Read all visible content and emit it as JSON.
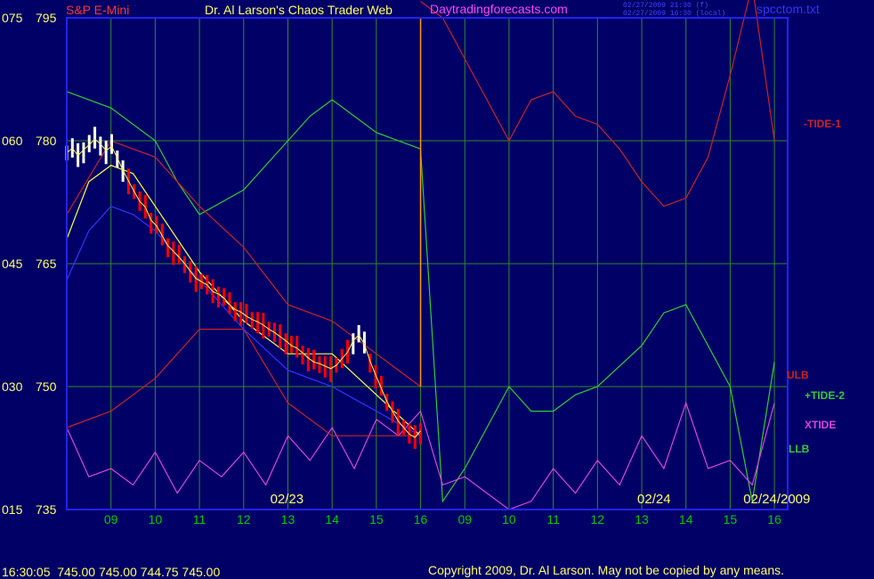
{
  "header": {
    "symbol": "S&P E-Mini",
    "title": "Dr. Al Larson's Chaos Trader Web",
    "site": "Daytradingforecasts.com",
    "stamp_line1": "02/27/2009 21:30 (f)",
    "stamp_line2": "02/27/2009 16:30 (local)",
    "file": "spcctom.txt"
  },
  "footer": {
    "quote_line": "16:30:05  745.00 745.00 744.75 745.00",
    "copyright": "Copyright 2009, Dr. Al Larson. May not be copied by any means."
  },
  "colors": {
    "background": "#000066",
    "grid": "#2e8b2e",
    "plot_border": "#2222ff",
    "tick_text": "#00cc00",
    "price_text": "#ffff66",
    "title_text": "#ffff66",
    "symbol_text": "#ff3333",
    "site_text": "#ff44ff",
    "file_text": "#3333ff",
    "price_white": "#ffffff",
    "price_red": "#ff0000",
    "tide1": "#cc2222",
    "tide2": "#33cc33",
    "xtide": "#dd44dd",
    "ulb": "#cc2222",
    "llb": "#cc2222",
    "ma_blue": "#3333ff",
    "ma_yellow": "#ffff44",
    "cursor_orange": "#ff9900"
  },
  "chart_data": {
    "type": "line",
    "title": "S&P E-Mini",
    "xlabel": "",
    "ylabel": "",
    "ylim": [
      735,
      795
    ],
    "grid": true,
    "price_axis_labels": [
      "795",
      "780",
      "765",
      "750",
      "735"
    ],
    "left_axis_labels": [
      "075",
      "060",
      "045",
      "030",
      "015"
    ],
    "hour_ticks": [
      "09",
      "10",
      "11",
      "12",
      "13",
      "14",
      "15",
      "16",
      "09",
      "10",
      "11",
      "12",
      "13",
      "14",
      "15",
      "16"
    ],
    "date_labels": [
      "02/23",
      "02/24",
      "02/24/2009"
    ],
    "legend": [
      "-TIDE-1",
      "ULB",
      "+TIDE-2",
      "XTIDE",
      "LLB"
    ],
    "legend_placement": "right",
    "bars": {
      "x_start": 8.0,
      "x_end": 16.0,
      "values": [
        778.5,
        779.1,
        778.2,
        778.9,
        779.5,
        780.2,
        779.6,
        778.8,
        779.3,
        777.9,
        776.4,
        775.1,
        773.8,
        772.6,
        771.9,
        770.3,
        769.6,
        768.4,
        767.2,
        766.5,
        765.8,
        765.0,
        764.1,
        763.2,
        762.8,
        762.4,
        761.6,
        761.3,
        760.8,
        760.0,
        759.4,
        759.1,
        758.6,
        758.2,
        757.9,
        757.5,
        757.0,
        756.6,
        756.1,
        755.6,
        755.0,
        754.7,
        754.1,
        753.5,
        753.0,
        752.8,
        752.5,
        752.2,
        752.6,
        753.4,
        754.2,
        755.6,
        756.3,
        755.2,
        753.1,
        751.4,
        749.8,
        748.2,
        747.0,
        745.8,
        745.0,
        744.2,
        743.8,
        744.6
      ],
      "white_segments": [
        [
          0,
          10
        ],
        [
          51,
          53
        ]
      ]
    },
    "series": [
      {
        "name": "-TIDE-1",
        "x": [
          16.0,
          16.5,
          17.0,
          17.5,
          18.0,
          18.5,
          19.0,
          19.5,
          20.0,
          20.5,
          21.0,
          21.5,
          22.0,
          22.5,
          23.0,
          23.5,
          24.0
        ],
        "values": [
          797,
          795,
          790,
          785,
          780,
          785,
          786,
          783,
          782,
          779,
          775,
          772,
          773,
          778,
          788,
          799,
          780
        ]
      },
      {
        "name": "+TIDE-2",
        "x": [
          8.0,
          9.0,
          10.0,
          10.5,
          11.0,
          12.0,
          13.0,
          13.5,
          14.0,
          15.0,
          16.0,
          16.5,
          17.0,
          17.5,
          18.0,
          18.5,
          19.0,
          19.5,
          20.0,
          21.0,
          21.5,
          22.0,
          23.0,
          23.5,
          24.0
        ],
        "values": [
          786,
          784,
          780,
          775,
          771,
          774,
          780,
          783,
          785,
          781,
          779,
          736,
          740,
          745,
          750,
          747,
          747,
          749,
          750,
          755,
          759,
          760,
          750,
          736,
          753
        ]
      },
      {
        "name": "XTIDE",
        "x": [
          8.0,
          8.5,
          9.0,
          9.5,
          10.0,
          10.5,
          11.0,
          11.5,
          12.0,
          12.5,
          13.0,
          13.5,
          14.0,
          14.5,
          15.0,
          15.5,
          16.0,
          16.5,
          17.0,
          17.5,
          18.0,
          18.5,
          19.0,
          19.5,
          20.0,
          20.5,
          21.0,
          21.5,
          22.0,
          22.5,
          23.0,
          23.5,
          24.0
        ],
        "values": [
          745,
          739,
          740,
          738,
          742,
          737,
          741,
          739,
          742,
          738,
          744,
          741,
          745,
          740,
          746,
          744,
          747,
          738,
          739,
          737,
          735,
          736,
          740,
          737,
          741,
          738,
          744,
          740,
          748,
          740,
          741,
          738,
          748
        ]
      },
      {
        "name": "ULB",
        "x": [
          8.0,
          9.0,
          10.0,
          11.0,
          12.0,
          13.0,
          14.0,
          14.5,
          15.0,
          15.5,
          16.0
        ],
        "values": [
          771,
          780,
          778,
          772,
          767,
          760,
          758,
          756,
          754,
          752,
          750
        ]
      },
      {
        "name": "LLB",
        "x": [
          8.0,
          9.0,
          10.0,
          11.0,
          12.0,
          13.0,
          14.0,
          15.0,
          16.0
        ],
        "values": [
          745,
          747,
          751,
          757,
          757,
          748,
          744,
          744,
          744
        ]
      },
      {
        "name": "MA1",
        "x": [
          8.0,
          8.5,
          9.0,
          9.5,
          10.0,
          11.0,
          12.0,
          13.0,
          14.0,
          15.0,
          16.0
        ],
        "values": [
          768,
          775,
          777,
          776,
          772,
          764,
          758,
          754,
          754,
          749,
          744
        ]
      },
      {
        "name": "MA2",
        "x": [
          8.0,
          8.5,
          9.0,
          9.5,
          10.0,
          11.0,
          12.0,
          13.0,
          14.0,
          15.0,
          16.0
        ],
        "values": [
          763,
          769,
          772,
          771,
          769,
          763,
          757,
          752,
          750,
          747,
          744
        ]
      }
    ]
  }
}
